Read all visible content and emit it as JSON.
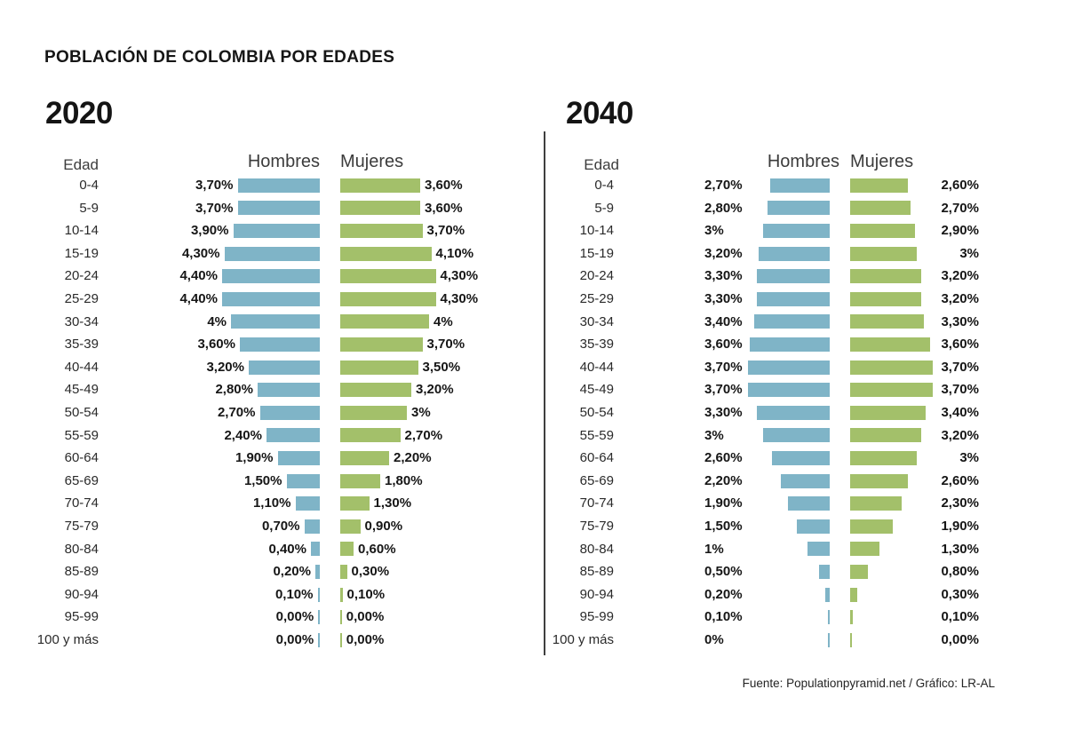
{
  "title": "POBLACIÓN DE COLOMBIA POR EDADES",
  "footer": "Fuente: Populationpyramid.net / Gráfico: LR-AL",
  "colors": {
    "hombres": "#7fb4c7",
    "mujeres": "#a3c06a"
  },
  "chart_data": [
    {
      "type": "bar",
      "subtype": "population-pyramid",
      "title": "2020",
      "age_header": "Edad",
      "categories": [
        "0-4",
        "5-9",
        "10-14",
        "15-19",
        "20-24",
        "25-29",
        "30-34",
        "35-39",
        "40-44",
        "45-49",
        "50-54",
        "55-59",
        "60-64",
        "65-69",
        "70-74",
        "75-79",
        "80-84",
        "85-89",
        "90-94",
        "95-99",
        "100 y más"
      ],
      "series": [
        {
          "name": "Hombres",
          "values": [
            3.7,
            3.7,
            3.9,
            4.3,
            4.4,
            4.4,
            4.0,
            3.6,
            3.2,
            2.8,
            2.7,
            2.4,
            1.9,
            1.5,
            1.1,
            0.7,
            0.4,
            0.2,
            0.1,
            0.0,
            0.0
          ],
          "labels": [
            "3,70%",
            "3,70%",
            "3,90%",
            "4,30%",
            "4,40%",
            "4,40%",
            "4%",
            "3,60%",
            "3,20%",
            "2,80%",
            "2,70%",
            "2,40%",
            "1,90%",
            "1,50%",
            "1,10%",
            "0,70%",
            "0,40%",
            "0,20%",
            "0,10%",
            "0,00%",
            "0,00%"
          ]
        },
        {
          "name": "Mujeres",
          "values": [
            3.6,
            3.6,
            3.7,
            4.1,
            4.3,
            4.3,
            4.0,
            3.7,
            3.5,
            3.2,
            3.0,
            2.7,
            2.2,
            1.8,
            1.3,
            0.9,
            0.6,
            0.3,
            0.1,
            0.0,
            0.0
          ],
          "labels": [
            "3,60%",
            "3,60%",
            "3,70%",
            "4,10%",
            "4,30%",
            "4,30%",
            "4%",
            "3,70%",
            "3,50%",
            "3,20%",
            "3%",
            "2,70%",
            "2,20%",
            "1,80%",
            "1,30%",
            "0,90%",
            "0,60%",
            "0,30%",
            "0,10%",
            "0,00%",
            "0,00%"
          ]
        }
      ],
      "value_unit": "%",
      "xlim_each_side": [
        0,
        4.5
      ],
      "grid": false,
      "label_placement": "adjacent-to-bar"
    },
    {
      "type": "bar",
      "subtype": "population-pyramid",
      "title": "2040",
      "age_header": "Edad",
      "categories": [
        "0-4",
        "5-9",
        "10-14",
        "15-19",
        "20-24",
        "25-29",
        "30-34",
        "35-39",
        "40-44",
        "45-49",
        "50-54",
        "55-59",
        "60-64",
        "65-69",
        "70-74",
        "75-79",
        "80-84",
        "85-89",
        "90-94",
        "95-99",
        "100 y más"
      ],
      "series": [
        {
          "name": "Hombres",
          "values": [
            2.7,
            2.8,
            3.0,
            3.2,
            3.3,
            3.3,
            3.4,
            3.6,
            3.7,
            3.7,
            3.3,
            3.0,
            2.6,
            2.2,
            1.9,
            1.5,
            1.0,
            0.5,
            0.2,
            0.1,
            0.0
          ],
          "labels": [
            "2,70%",
            "2,80%",
            "3%",
            "3,20%",
            "3,30%",
            "3,30%",
            "3,40%",
            "3,60%",
            "3,70%",
            "3,70%",
            "3,30%",
            "3%",
            "2,60%",
            "2,20%",
            "1,90%",
            "1,50%",
            "1%",
            "0,50%",
            "0,20%",
            "0,10%",
            "0%"
          ]
        },
        {
          "name": "Mujeres",
          "values": [
            2.6,
            2.7,
            2.9,
            3.0,
            3.2,
            3.2,
            3.3,
            3.6,
            3.7,
            3.7,
            3.4,
            3.2,
            3.0,
            2.6,
            2.3,
            1.9,
            1.3,
            0.8,
            0.3,
            0.1,
            0.0
          ],
          "labels": [
            "2,60%",
            "2,70%",
            "2,90%",
            "3%",
            "3,20%",
            "3,20%",
            "3,30%",
            "3,60%",
            "3,70%",
            "3,70%",
            "3,40%",
            "3,20%",
            "3%",
            "2,60%",
            "2,30%",
            "1,90%",
            "1,30%",
            "0,80%",
            "0,30%",
            "0,10%",
            "0,00%"
          ]
        }
      ],
      "value_unit": "%",
      "xlim_each_side": [
        0,
        4.5
      ],
      "grid": false,
      "label_placement": "fixed-columns"
    }
  ]
}
